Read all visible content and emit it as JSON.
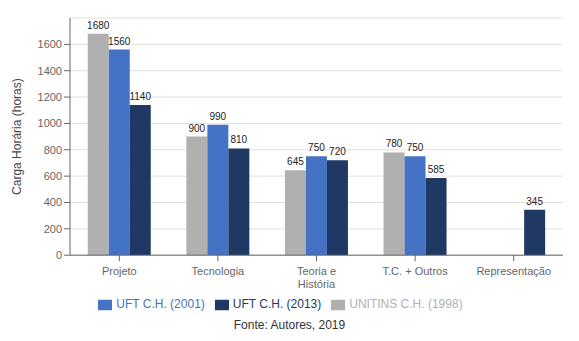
{
  "chart_data": {
    "type": "bar",
    "categories": [
      "Projeto",
      "Tecnologia",
      "Teoria e\nHistória",
      "T.C. + Outros",
      "Representação"
    ],
    "series": [
      {
        "name": "UNITINS C.H. (1998)",
        "color": "#b0b0b0",
        "values": [
          1680,
          900,
          645,
          780,
          null
        ]
      },
      {
        "name": "UFT C.H. (2001)",
        "color": "#4472c4",
        "values": [
          1560,
          990,
          750,
          750,
          null
        ]
      },
      {
        "name": "UFT C.H. (2013)",
        "color": "#1f3864",
        "values": [
          1140,
          810,
          720,
          585,
          345
        ]
      }
    ],
    "ylabel": "Carga Horária (horas)",
    "ylim": [
      0,
      1800
    ],
    "yticks": [
      0,
      200,
      400,
      600,
      800,
      1000,
      1200,
      1400,
      1600
    ],
    "grid": true,
    "data_labels": true,
    "legend": "bottom",
    "annotations": [
      "Fonte: Autores, 2019"
    ]
  }
}
